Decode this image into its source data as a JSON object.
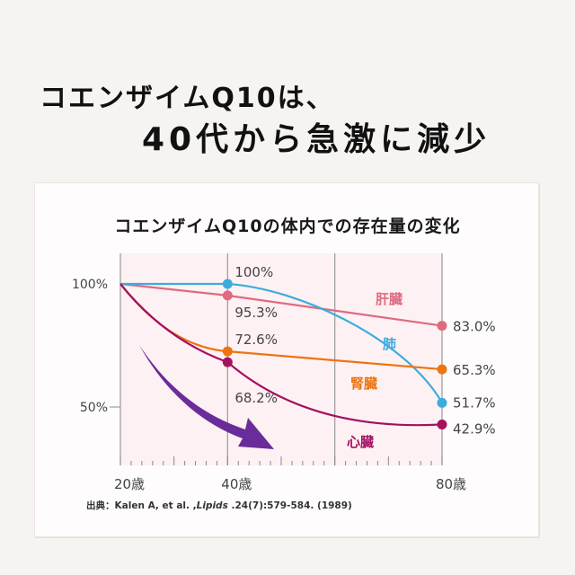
{
  "headline": {
    "line1": "コエンザイムQ10は、",
    "line2": "40代から急激に減少"
  },
  "chart_data": {
    "type": "line",
    "title": "コエンザイムQ10の体内での存在量の変化",
    "xlabel": "",
    "ylabel": "",
    "x": [
      20,
      40,
      80
    ],
    "x_tick_labels": [
      "20歳",
      "40歳",
      "80歳"
    ],
    "x_range": [
      20,
      80
    ],
    "y_ticks": [
      100,
      50
    ],
    "y_tick_labels": [
      "100%",
      "50%"
    ],
    "ylim": [
      25,
      100
    ],
    "grid": "vertical",
    "series": [
      {
        "name": "肝臓",
        "color": "#e06a80",
        "values": [
          100,
          95.3,
          83.0
        ],
        "labels": [
          "",
          "95.3%",
          "83.0%"
        ]
      },
      {
        "name": "肺",
        "color": "#3cacdc",
        "values": [
          100,
          100,
          51.7
        ],
        "labels": [
          "",
          "100%",
          "51.7%"
        ]
      },
      {
        "name": "腎臓",
        "color": "#ec7411",
        "values": [
          100,
          72.6,
          65.3
        ],
        "labels": [
          "",
          "72.6%",
          "65.3%"
        ]
      },
      {
        "name": "心臓",
        "color": "#a3125e",
        "values": [
          100,
          68.2,
          42.9
        ],
        "labels": [
          "",
          "68.2%",
          "42.9%"
        ]
      }
    ],
    "annotation": "decline-arrow",
    "arrow_color": "#6a2c9a"
  },
  "source": {
    "prefix": "出典：Kalen A, et al. ,",
    "journal": "Lipids",
    "suffix": " .24(7):579-584. (1989)"
  }
}
